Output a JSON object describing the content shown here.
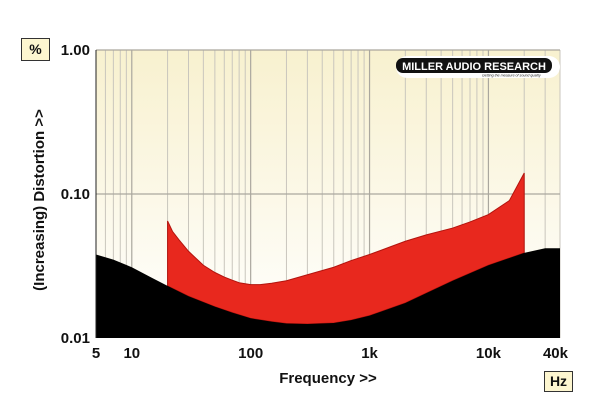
{
  "chart_data": {
    "type": "area",
    "xlabel": "Frequency >>",
    "ylabel": "(Increasing) Distortion >>",
    "x_unit": "Hz",
    "y_unit": "%",
    "x_scale": "log",
    "y_scale": "log",
    "xlim": [
      5,
      40000
    ],
    "ylim": [
      0.01,
      1.0
    ],
    "x_tick_labels": [
      "5",
      "10",
      "100",
      "1k",
      "10k",
      "40k"
    ],
    "y_tick_labels": [
      "1.00",
      "0.10",
      "0.01"
    ],
    "grid": true,
    "logo": {
      "name": "MILLER AUDIO RESEARCH",
      "tagline": "Getting the measure of sound quality"
    },
    "colors": {
      "plot_background": "#fbf6de",
      "noise_floor": "#000000",
      "distortion": "#e8281e",
      "grid": "#b9b6ad"
    },
    "series": [
      {
        "role": "noise_floor",
        "x": [
          5,
          7,
          10,
          15,
          20,
          30,
          50,
          70,
          100,
          150,
          200,
          300,
          500,
          700,
          1000,
          2000,
          3000,
          5000,
          10000,
          20000,
          30000,
          40000
        ],
        "y": [
          0.038,
          0.035,
          0.031,
          0.026,
          0.023,
          0.0195,
          0.0165,
          0.015,
          0.0137,
          0.013,
          0.0126,
          0.0125,
          0.0127,
          0.0133,
          0.0143,
          0.0175,
          0.0205,
          0.025,
          0.032,
          0.039,
          0.042,
          0.042
        ]
      },
      {
        "role": "distortion_upper",
        "x": [
          20,
          22,
          25,
          30,
          40,
          50,
          60,
          70,
          80,
          100,
          120,
          150,
          200,
          300,
          500,
          700,
          1000,
          1500,
          2000,
          3000,
          5000,
          7000,
          10000,
          15000,
          20000
        ],
        "y": [
          0.065,
          0.055,
          0.048,
          0.04,
          0.032,
          0.0285,
          0.0265,
          0.0252,
          0.0242,
          0.0235,
          0.0235,
          0.024,
          0.025,
          0.0275,
          0.031,
          0.0345,
          0.038,
          0.043,
          0.047,
          0.052,
          0.058,
          0.064,
          0.072,
          0.09,
          0.14
        ]
      }
    ]
  }
}
